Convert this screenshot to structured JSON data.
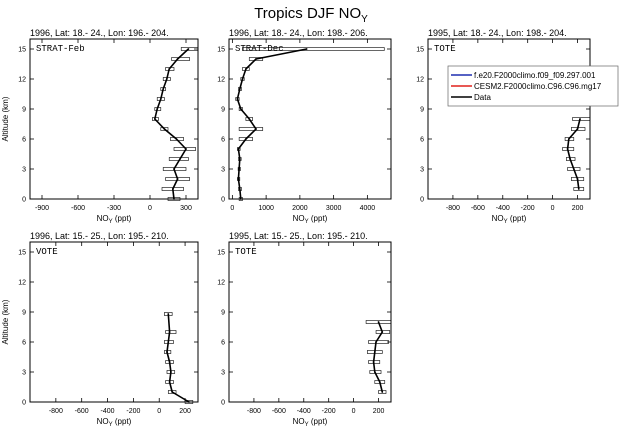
{
  "figure": {
    "title_main": "Tropics DJF NO",
    "title_sub": "Y"
  },
  "legend": {
    "entries": [
      {
        "label": "f.e20.F2000climo.f09_f09.297.001",
        "color": "#1f2fb0"
      },
      {
        "label": "CESM2.F2000climo.C96.C96.mg17",
        "color": "#e0201c"
      },
      {
        "label": "Data",
        "color": "#000000"
      }
    ]
  },
  "chart_data": [
    {
      "type": "line",
      "header": "1996, Lat: 18.- 24., Lon: 196.- 204.",
      "panel_label": "STRAT-Feb",
      "xlabel": "NO",
      "xlabel_sub": "Y",
      "xlabel_unit": " (ppt)",
      "ylabel": "Altitude (km)",
      "xlim": [
        -1000,
        400
      ],
      "xticks": [
        -900,
        -600,
        -300,
        0,
        300
      ],
      "ylim": [
        0,
        16
      ],
      "yticks": [
        0,
        3,
        6,
        9,
        12,
        15
      ],
      "series": [
        {
          "color": "#000000",
          "x": [
            200,
            190,
            230,
            200,
            250,
            300,
            220,
            120,
            40,
            60,
            90,
            110,
            140,
            160,
            230,
            320
          ],
          "y": [
            0,
            1,
            2,
            3,
            4,
            5,
            6,
            7,
            8,
            9,
            10,
            11,
            12,
            13,
            14,
            15
          ],
          "err_lo": [
            150,
            100,
            130,
            110,
            160,
            200,
            170,
            90,
            20,
            40,
            60,
            90,
            110,
            130,
            180,
            260
          ],
          "err_hi": [
            250,
            280,
            330,
            300,
            320,
            380,
            280,
            150,
            70,
            90,
            120,
            130,
            170,
            200,
            330,
            400
          ]
        }
      ]
    },
    {
      "type": "line",
      "header": "1996, Lat: 18.- 24., Lon: 198.- 206.",
      "panel_label": "STRAT-Dec",
      "xlabel": "NO",
      "xlabel_sub": "Y",
      "xlabel_unit": " (ppt)",
      "ylabel": "",
      "xlim": [
        -100,
        4700
      ],
      "xticks": [
        0,
        1000,
        2000,
        3000,
        4000
      ],
      "ylim": [
        0,
        16
      ],
      "yticks": [
        0,
        3,
        6,
        9,
        12,
        15
      ],
      "series": [
        {
          "color": "#000000",
          "x": [
            250,
            220,
            180,
            200,
            220,
            180,
            400,
            700,
            500,
            250,
            150,
            220,
            300,
            400,
            700,
            2200
          ],
          "y": [
            0,
            1,
            2,
            3,
            4,
            5,
            6,
            7,
            8,
            9,
            10,
            11,
            12,
            13,
            14,
            15
          ],
          "err_lo": [
            200,
            180,
            150,
            170,
            180,
            150,
            200,
            200,
            400,
            200,
            100,
            180,
            250,
            300,
            500,
            300
          ],
          "err_hi": [
            300,
            270,
            220,
            240,
            260,
            230,
            600,
            900,
            600,
            300,
            200,
            270,
            350,
            500,
            900,
            4500
          ]
        }
      ]
    },
    {
      "type": "line",
      "header": "1995, Lat: 18.- 24., Lon: 198.- 204.",
      "panel_label": "TOTE",
      "xlabel": "NO",
      "xlabel_sub": "Y",
      "xlabel_unit": " (ppt)",
      "ylabel": "",
      "xlim": [
        -1000,
        300
      ],
      "xticks": [
        -800,
        -600,
        -400,
        -200,
        0,
        200
      ],
      "ylim": [
        0,
        16
      ],
      "yticks": [
        0,
        3,
        6,
        9,
        12,
        15
      ],
      "series": [
        {
          "color": "#000000",
          "x": [
            210,
            200,
            170,
            140,
            120,
            130,
            200,
            220
          ],
          "y": [
            1,
            2,
            3,
            4,
            5,
            6,
            7,
            8
          ],
          "err_lo": [
            170,
            150,
            120,
            110,
            80,
            100,
            150,
            160
          ],
          "err_hi": [
            250,
            250,
            220,
            180,
            170,
            170,
            260,
            300
          ]
        }
      ]
    },
    {
      "type": "line",
      "header": "1996, Lat: 15.- 25., Lon: 195.- 210.",
      "panel_label": "VOTE",
      "xlabel": "NO",
      "xlabel_sub": "Y",
      "xlabel_unit": " (ppt)",
      "ylabel": "Altitude (km)",
      "xlim": [
        -1000,
        300
      ],
      "xticks": [
        -800,
        -600,
        -400,
        -200,
        0,
        200
      ],
      "ylim": [
        0,
        16
      ],
      "yticks": [
        0,
        3,
        6,
        9,
        12,
        15
      ],
      "series": [
        {
          "color": "#000000",
          "x": [
            230,
            100,
            80,
            90,
            80,
            60,
            70,
            80,
            70
          ],
          "y": [
            0,
            1,
            2,
            3,
            4,
            5,
            6,
            7,
            8.8
          ],
          "err_lo": [
            200,
            70,
            50,
            60,
            50,
            40,
            40,
            50,
            40
          ],
          "err_hi": [
            260,
            130,
            110,
            120,
            110,
            90,
            110,
            130,
            100
          ]
        }
      ]
    },
    {
      "type": "line",
      "header": "1995, Lat: 15.- 25., Lon: 195.- 210.",
      "panel_label": "TOTE",
      "xlabel": "NO",
      "xlabel_sub": "Y",
      "xlabel_unit": " (ppt)",
      "ylabel": "",
      "xlim": [
        -1000,
        300
      ],
      "xticks": [
        -800,
        -600,
        -400,
        -200,
        0,
        200
      ],
      "ylim": [
        0,
        16
      ],
      "yticks": [
        0,
        3,
        6,
        9,
        12,
        15
      ],
      "series": [
        {
          "color": "#000000",
          "x": [
            230,
            210,
            170,
            160,
            170,
            180,
            230,
            200
          ],
          "y": [
            1,
            2,
            3,
            4,
            5,
            6,
            7,
            8
          ],
          "err_lo": [
            200,
            170,
            130,
            120,
            110,
            120,
            180,
            100
          ],
          "err_hi": [
            260,
            250,
            220,
            210,
            230,
            280,
            290,
            300
          ]
        }
      ]
    }
  ]
}
